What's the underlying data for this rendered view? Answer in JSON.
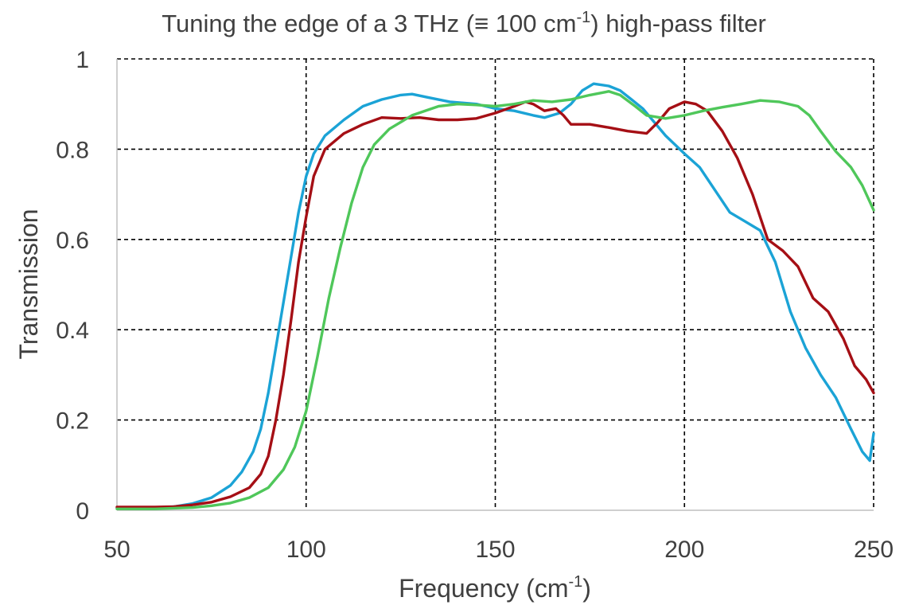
{
  "chart_data": {
    "type": "line",
    "title": {
      "prefix": "Tuning the edge of a 3 THz (≡ 100 cm",
      "sup": "-1",
      "suffix": ") high-pass filter"
    },
    "xlabel": {
      "prefix": "Frequency (cm",
      "sup": "-1",
      "suffix": ")"
    },
    "ylabel": "Transmission",
    "xlim": [
      50,
      250
    ],
    "ylim": [
      0,
      1
    ],
    "x_ticks": [
      50,
      100,
      150,
      200,
      250
    ],
    "x_tick_labels": [
      "50",
      "100",
      "150",
      "200",
      "250"
    ],
    "y_ticks": [
      0,
      0.2,
      0.4,
      0.6,
      0.8,
      1
    ],
    "y_tick_labels": [
      "0",
      "0.2",
      "0.4",
      "0.6",
      "0.8",
      "1"
    ],
    "grid": true,
    "series": [
      {
        "name": "blue",
        "color": "#1ba3d6",
        "points": [
          [
            50,
            0.005
          ],
          [
            60,
            0.006
          ],
          [
            65,
            0.008
          ],
          [
            70,
            0.015
          ],
          [
            75,
            0.028
          ],
          [
            80,
            0.055
          ],
          [
            83,
            0.085
          ],
          [
            86,
            0.13
          ],
          [
            88,
            0.18
          ],
          [
            90,
            0.26
          ],
          [
            92,
            0.36
          ],
          [
            94,
            0.46
          ],
          [
            96,
            0.56
          ],
          [
            98,
            0.66
          ],
          [
            100,
            0.74
          ],
          [
            102,
            0.79
          ],
          [
            105,
            0.83
          ],
          [
            110,
            0.865
          ],
          [
            115,
            0.895
          ],
          [
            120,
            0.91
          ],
          [
            125,
            0.92
          ],
          [
            128,
            0.922
          ],
          [
            132,
            0.915
          ],
          [
            138,
            0.905
          ],
          [
            145,
            0.9
          ],
          [
            150,
            0.89
          ],
          [
            155,
            0.885
          ],
          [
            160,
            0.875
          ],
          [
            163,
            0.87
          ],
          [
            167,
            0.88
          ],
          [
            170,
            0.9
          ],
          [
            173,
            0.93
          ],
          [
            176,
            0.945
          ],
          [
            180,
            0.94
          ],
          [
            183,
            0.93
          ],
          [
            186,
            0.91
          ],
          [
            189,
            0.89
          ],
          [
            192,
            0.86
          ],
          [
            195,
            0.83
          ],
          [
            200,
            0.79
          ],
          [
            204,
            0.76
          ],
          [
            208,
            0.71
          ],
          [
            212,
            0.66
          ],
          [
            216,
            0.64
          ],
          [
            220,
            0.62
          ],
          [
            224,
            0.55
          ],
          [
            228,
            0.44
          ],
          [
            232,
            0.36
          ],
          [
            236,
            0.3
          ],
          [
            240,
            0.25
          ],
          [
            244,
            0.18
          ],
          [
            247,
            0.13
          ],
          [
            249,
            0.11
          ],
          [
            250,
            0.17
          ]
        ]
      },
      {
        "name": "dark red",
        "color": "#a50f15",
        "points": [
          [
            50,
            0.007
          ],
          [
            60,
            0.007
          ],
          [
            65,
            0.008
          ],
          [
            70,
            0.012
          ],
          [
            75,
            0.018
          ],
          [
            80,
            0.03
          ],
          [
            85,
            0.05
          ],
          [
            88,
            0.08
          ],
          [
            90,
            0.12
          ],
          [
            92,
            0.2
          ],
          [
            94,
            0.3
          ],
          [
            96,
            0.42
          ],
          [
            98,
            0.55
          ],
          [
            100,
            0.65
          ],
          [
            102,
            0.74
          ],
          [
            105,
            0.8
          ],
          [
            110,
            0.835
          ],
          [
            115,
            0.855
          ],
          [
            120,
            0.87
          ],
          [
            125,
            0.868
          ],
          [
            130,
            0.87
          ],
          [
            135,
            0.865
          ],
          [
            140,
            0.865
          ],
          [
            145,
            0.868
          ],
          [
            150,
            0.88
          ],
          [
            155,
            0.895
          ],
          [
            158,
            0.905
          ],
          [
            160,
            0.9
          ],
          [
            163,
            0.885
          ],
          [
            166,
            0.89
          ],
          [
            168,
            0.875
          ],
          [
            170,
            0.855
          ],
          [
            175,
            0.855
          ],
          [
            180,
            0.848
          ],
          [
            185,
            0.84
          ],
          [
            190,
            0.835
          ],
          [
            193,
            0.86
          ],
          [
            196,
            0.89
          ],
          [
            200,
            0.905
          ],
          [
            203,
            0.9
          ],
          [
            206,
            0.885
          ],
          [
            210,
            0.84
          ],
          [
            214,
            0.78
          ],
          [
            218,
            0.7
          ],
          [
            222,
            0.6
          ],
          [
            226,
            0.575
          ],
          [
            230,
            0.54
          ],
          [
            234,
            0.47
          ],
          [
            238,
            0.44
          ],
          [
            242,
            0.38
          ],
          [
            245,
            0.32
          ],
          [
            248,
            0.29
          ],
          [
            250,
            0.26
          ]
        ]
      },
      {
        "name": "green",
        "color": "#4fc75a",
        "points": [
          [
            50,
            0.003
          ],
          [
            60,
            0.003
          ],
          [
            70,
            0.006
          ],
          [
            75,
            0.01
          ],
          [
            80,
            0.016
          ],
          [
            85,
            0.028
          ],
          [
            90,
            0.05
          ],
          [
            94,
            0.09
          ],
          [
            97,
            0.14
          ],
          [
            100,
            0.22
          ],
          [
            103,
            0.34
          ],
          [
            106,
            0.47
          ],
          [
            109,
            0.58
          ],
          [
            112,
            0.68
          ],
          [
            115,
            0.76
          ],
          [
            118,
            0.81
          ],
          [
            122,
            0.845
          ],
          [
            128,
            0.875
          ],
          [
            135,
            0.895
          ],
          [
            140,
            0.9
          ],
          [
            145,
            0.898
          ],
          [
            150,
            0.895
          ],
          [
            155,
            0.9
          ],
          [
            160,
            0.908
          ],
          [
            165,
            0.905
          ],
          [
            170,
            0.91
          ],
          [
            175,
            0.92
          ],
          [
            180,
            0.928
          ],
          [
            183,
            0.92
          ],
          [
            187,
            0.895
          ],
          [
            190,
            0.875
          ],
          [
            195,
            0.868
          ],
          [
            200,
            0.875
          ],
          [
            205,
            0.885
          ],
          [
            210,
            0.893
          ],
          [
            215,
            0.9
          ],
          [
            220,
            0.908
          ],
          [
            225,
            0.905
          ],
          [
            230,
            0.895
          ],
          [
            233,
            0.875
          ],
          [
            236,
            0.84
          ],
          [
            240,
            0.795
          ],
          [
            244,
            0.76
          ],
          [
            247,
            0.72
          ],
          [
            250,
            0.665
          ]
        ]
      }
    ]
  }
}
